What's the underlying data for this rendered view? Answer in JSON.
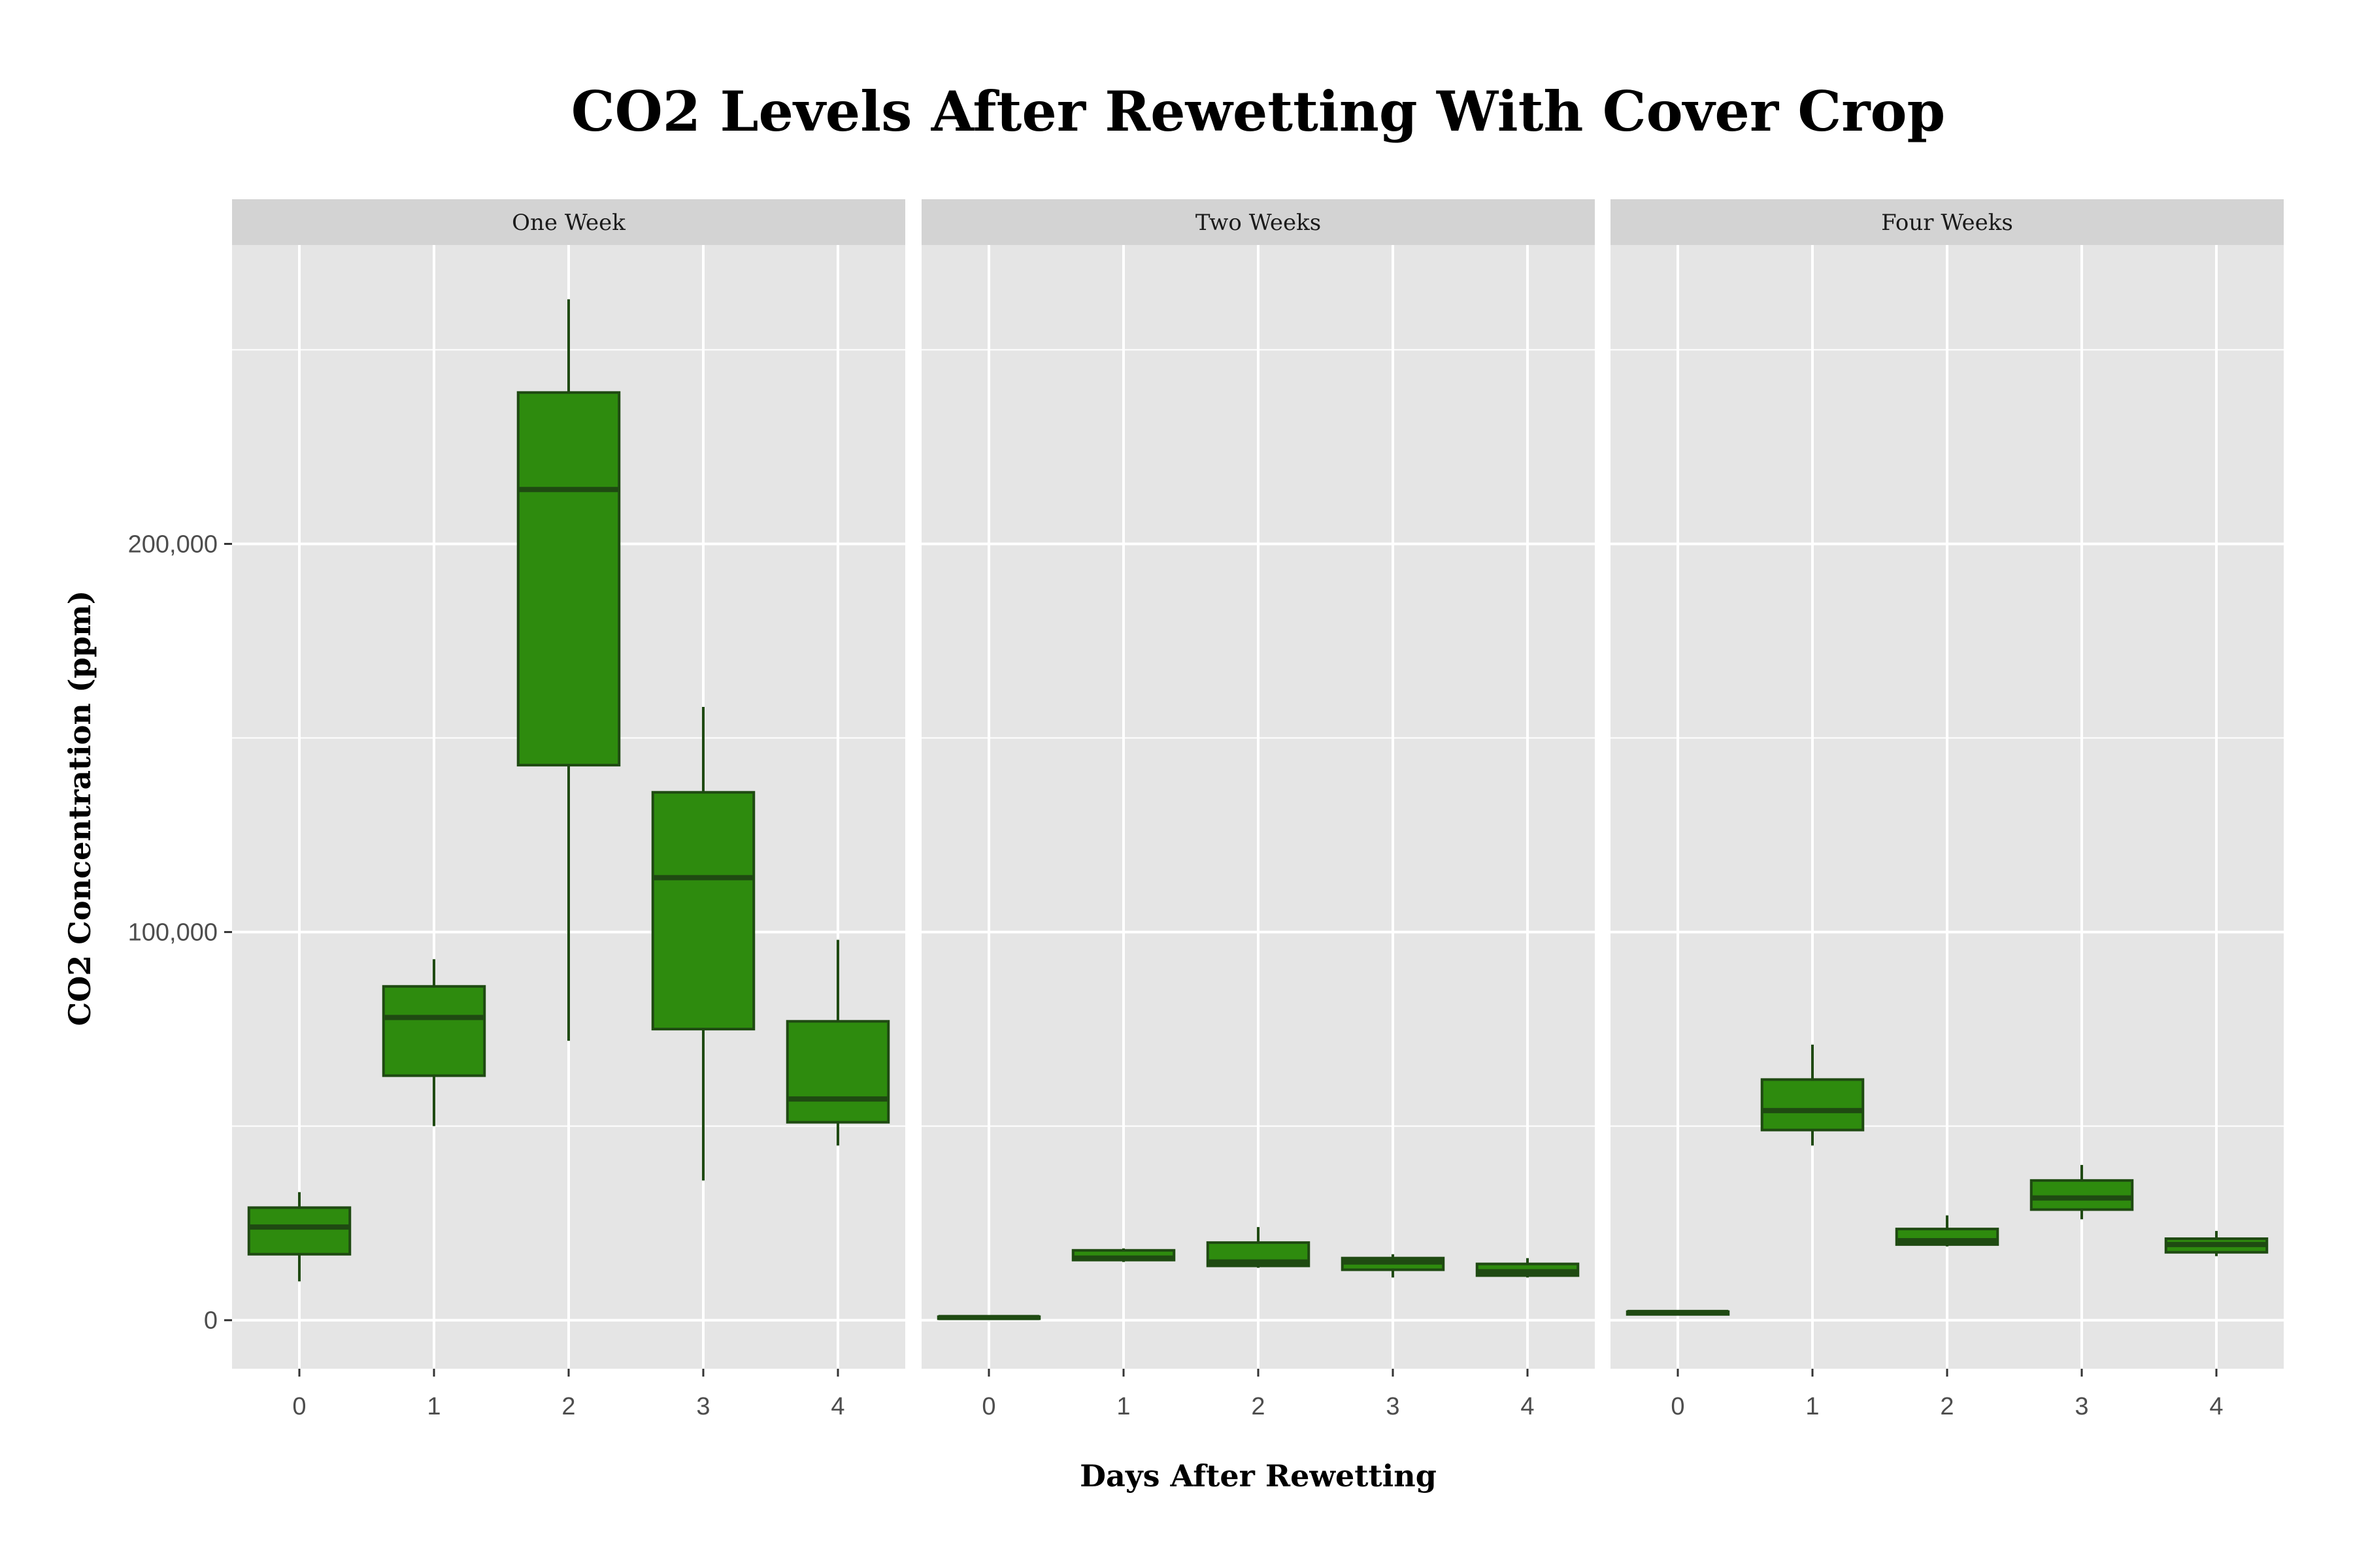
{
  "chart_data": {
    "type": "boxplot",
    "title": "CO2 Levels After Rewetting With Cover Crop",
    "xlabel": "Days After Rewetting",
    "ylabel": "CO2 Concentration (ppm)",
    "x_categories": [
      "0",
      "1",
      "2",
      "3",
      "4"
    ],
    "y_ticks": [
      0,
      100000,
      200000
    ],
    "y_tick_labels": [
      "0",
      "100,000",
      "200,000"
    ],
    "ylim": [
      -12500,
      277000
    ],
    "grid": true,
    "colors": {
      "box_fill": "#2e8b0e",
      "box_border": "#1f4a12",
      "panel_bg": "#e5e5e5",
      "strip_bg": "#d3d3d3",
      "grid": "#ffffff"
    },
    "panels": [
      {
        "name": "One Week",
        "boxes": [
          {
            "x": "0",
            "min": 10000,
            "q1": 17000,
            "median": 24000,
            "q3": 29000,
            "max": 33000
          },
          {
            "x": "1",
            "min": 50000,
            "q1": 63000,
            "median": 78000,
            "q3": 86000,
            "max": 93000
          },
          {
            "x": "2",
            "min": 72000,
            "q1": 143000,
            "median": 214000,
            "q3": 239000,
            "max": 263000
          },
          {
            "x": "3",
            "min": 36000,
            "q1": 75000,
            "median": 114000,
            "q3": 136000,
            "max": 158000
          },
          {
            "x": "4",
            "min": 45000,
            "q1": 51000,
            "median": 57000,
            "q3": 77000,
            "max": 98000
          }
        ]
      },
      {
        "name": "Two Weeks",
        "boxes": [
          {
            "x": "0",
            "min": 500,
            "q1": 500,
            "median": 700,
            "q3": 900,
            "max": 1000
          },
          {
            "x": "1",
            "min": 15000,
            "q1": 15500,
            "median": 16000,
            "q3": 18000,
            "max": 18500
          },
          {
            "x": "2",
            "min": 13500,
            "q1": 14000,
            "median": 15000,
            "q3": 20000,
            "max": 24000
          },
          {
            "x": "3",
            "min": 11000,
            "q1": 13000,
            "median": 15000,
            "q3": 16000,
            "max": 17000
          },
          {
            "x": "4",
            "min": 11000,
            "q1": 11500,
            "median": 12500,
            "q3": 14500,
            "max": 16000
          }
        ]
      },
      {
        "name": "Four Weeks",
        "boxes": [
          {
            "x": "0",
            "min": 1500,
            "q1": 1500,
            "median": 2000,
            "q3": 2200,
            "max": 2300
          },
          {
            "x": "1",
            "min": 45000,
            "q1": 49000,
            "median": 54000,
            "q3": 62000,
            "max": 71000
          },
          {
            "x": "2",
            "min": 19000,
            "q1": 19500,
            "median": 20500,
            "q3": 23500,
            "max": 27000
          },
          {
            "x": "3",
            "min": 26000,
            "q1": 28500,
            "median": 31500,
            "q3": 36000,
            "max": 40000
          },
          {
            "x": "4",
            "min": 16500,
            "q1": 17500,
            "median": 19500,
            "q3": 21000,
            "max": 23000
          }
        ]
      }
    ]
  }
}
